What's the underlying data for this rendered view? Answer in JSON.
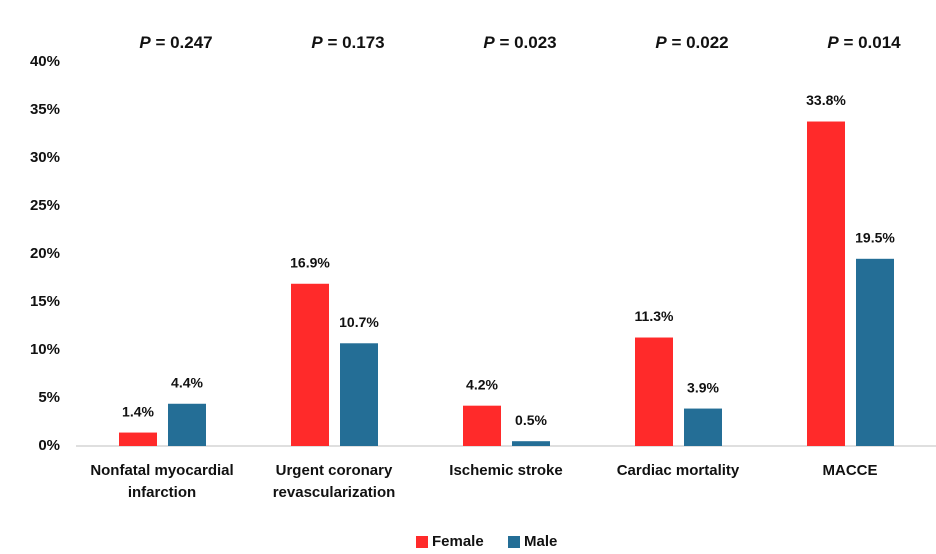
{
  "chart_data": {
    "type": "bar",
    "categories": [
      "Nonfatal myocardial infarction",
      "Urgent coronary revascularization",
      "Ischemic stroke",
      "Cardiac mortality",
      "MACCE"
    ],
    "series": [
      {
        "name": "Female",
        "color": "#ff2a2a",
        "values": [
          1.4,
          16.9,
          4.2,
          11.3,
          33.8
        ],
        "value_labels": [
          "1.4%",
          "16.9%",
          "4.2%",
          "11.3%",
          "33.8%"
        ]
      },
      {
        "name": "Male",
        "color": "#246e96",
        "values": [
          4.4,
          10.7,
          0.5,
          3.9,
          19.5
        ],
        "value_labels": [
          "4.4%",
          "10.7%",
          "0.5%",
          "3.9%",
          "19.5%"
        ]
      }
    ],
    "p_annotations": [
      {
        "symbol": "P",
        "text": "= 0.247"
      },
      {
        "symbol": "P",
        "text": "= 0.173"
      },
      {
        "symbol": "P",
        "text": "= 0.023"
      },
      {
        "symbol": "P",
        "text": "= 0.022"
      },
      {
        "symbol": "P",
        "text": "= 0.014"
      }
    ],
    "ylim": [
      0,
      40
    ],
    "yticks": [
      {
        "value": 0,
        "label": "0%"
      },
      {
        "value": 5,
        "label": "5%"
      },
      {
        "value": 10,
        "label": "10%"
      },
      {
        "value": 15,
        "label": "15%"
      },
      {
        "value": 20,
        "label": "20%"
      },
      {
        "value": 25,
        "label": "25%"
      },
      {
        "value": 30,
        "label": "30%"
      },
      {
        "value": 35,
        "label": "35%"
      },
      {
        "value": 40,
        "label": "40%"
      }
    ],
    "grid": false,
    "legend": "bottom"
  }
}
